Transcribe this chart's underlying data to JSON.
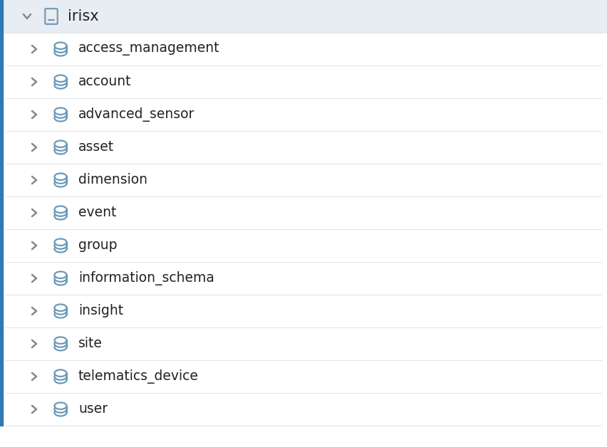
{
  "background_color": "#ffffff",
  "header_bg_color": "#e8edf3",
  "left_bar_color": "#2d7ab5",
  "header_text": "irisx",
  "header_text_color": "#222222",
  "header_icon_color": "#7a9ab5",
  "arrow_color": "#888888",
  "db_icon_color": "#6a9ab8",
  "item_text_color": "#222222",
  "items": [
    "access_management",
    "account",
    "advanced_sensor",
    "asset",
    "dimension",
    "event",
    "group",
    "information_schema",
    "insight",
    "site",
    "telematics_device",
    "user"
  ],
  "header_font_size": 15,
  "item_font_size": 13.5,
  "fig_width": 8.52,
  "fig_height": 6.28,
  "dpi": 100
}
